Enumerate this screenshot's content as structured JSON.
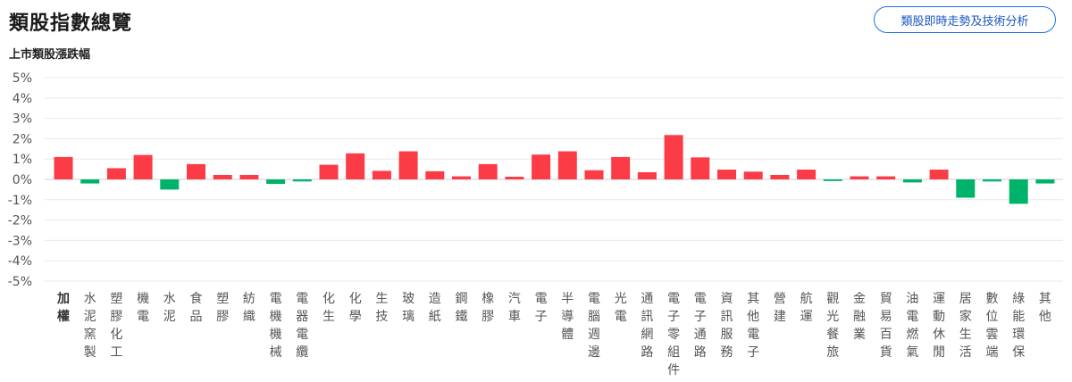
{
  "header": {
    "title": "類股指數總覽",
    "analysis_button_label": "類股即時走勢及技術分析"
  },
  "chart_data": {
    "type": "bar",
    "title": "上市類股漲跌幅",
    "ylim": [
      -5,
      5
    ],
    "yticks": [
      "5%",
      "4%",
      "3%",
      "2%",
      "1%",
      "0%",
      "-1%",
      "-2%",
      "-3%",
      "-4%",
      "-5%"
    ],
    "grid": true,
    "colors": {
      "up": "#fb3b45",
      "down": "#00b36b"
    },
    "categories": [
      "加權",
      "水泥窯製",
      "塑膠化工",
      "機電",
      "水泥",
      "食品",
      "塑膠",
      "紡織",
      "電機機械",
      "電器電纜",
      "化生",
      "化學",
      "生技",
      "玻璃",
      "造紙",
      "鋼鐵",
      "橡膠",
      "汽車",
      "電子",
      "半導體",
      "電腦週邊",
      "光電",
      "通訊網路",
      "電子零組件",
      "電子通路",
      "資訊服務",
      "其他電子",
      "營建",
      "航運",
      "觀光餐旅",
      "金融業",
      "貿易百貨",
      "油電燃氣",
      "運動休閒",
      "居家生活",
      "數位雲端",
      "綠能環保",
      "其他"
    ],
    "values": [
      1.1,
      -0.2,
      0.55,
      1.2,
      -0.5,
      0.75,
      0.22,
      0.22,
      -0.22,
      -0.1,
      0.72,
      1.28,
      0.42,
      1.38,
      0.4,
      0.15,
      0.75,
      0.13,
      1.22,
      1.38,
      0.45,
      1.1,
      0.35,
      2.18,
      1.08,
      0.48,
      0.38,
      0.22,
      0.48,
      -0.08,
      0.15,
      0.15,
      -0.15,
      0.48,
      -0.9,
      -0.1,
      -1.2,
      -0.2
    ]
  }
}
